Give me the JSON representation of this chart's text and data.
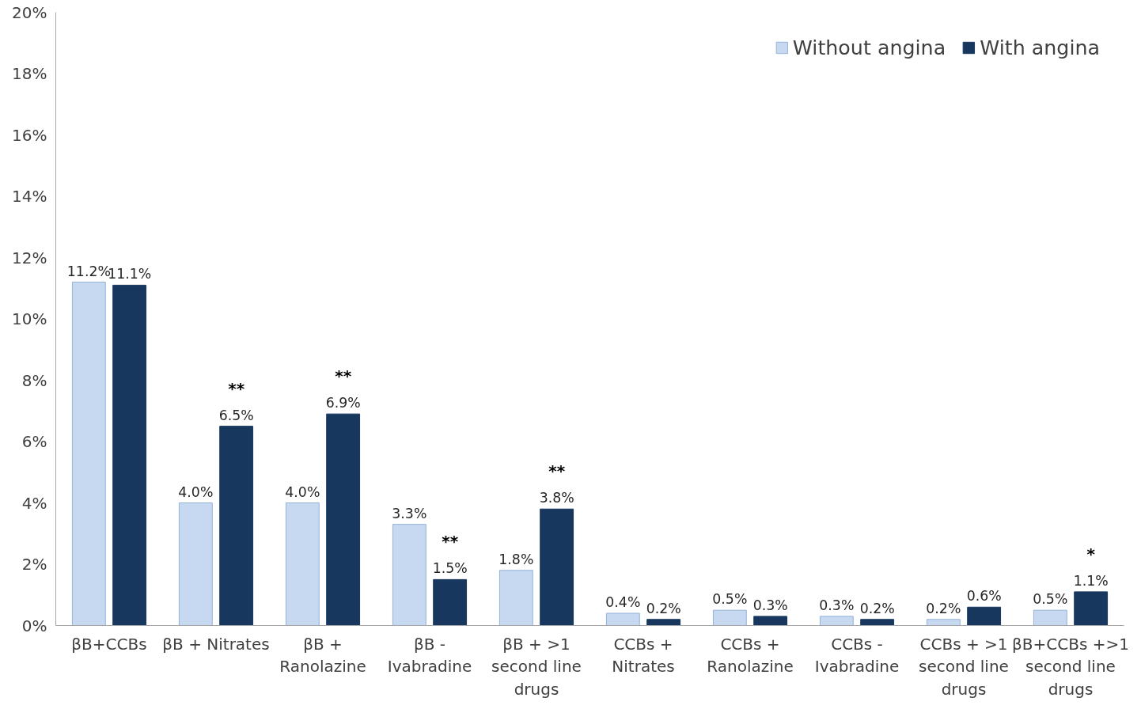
{
  "chart_data": {
    "type": "bar",
    "categories": [
      "βB+CCBs",
      "βB + Nitrates",
      "βB +\nRanolazine",
      "βB -\nIvabradine",
      "βB + >1\nsecond line\ndrugs",
      "CCBs +\nNitrates",
      "CCBs +\nRanolazine",
      "CCBs -\nIvabradine",
      "CCBs + >1\nsecond line\ndrugs",
      "βB+CCBs +>1\nsecond line\ndrugs"
    ],
    "series": [
      {
        "name": "Without angina",
        "color": "#c6d9f1",
        "values": [
          11.2,
          4.0,
          4.0,
          3.3,
          1.8,
          0.4,
          0.5,
          0.3,
          0.2,
          0.5
        ],
        "value_labels": [
          "11.2%",
          "4.0%",
          "4.0%",
          "3.3%",
          "1.8%",
          "0.4%",
          "0.5%",
          "0.3%",
          "0.2%",
          "0.5%"
        ]
      },
      {
        "name": "With angina",
        "color": "#17375e",
        "values": [
          11.1,
          6.5,
          6.9,
          1.5,
          3.8,
          0.2,
          0.3,
          0.2,
          0.6,
          1.1
        ],
        "value_labels": [
          "11.1%",
          "6.5%",
          "6.9%",
          "1.5%",
          "3.8%",
          "0.2%",
          "0.3%",
          "0.2%",
          "0.6%",
          "1.1%"
        ]
      }
    ],
    "ylim": [
      0,
      20
    ],
    "yticks": [
      {
        "value": 0,
        "label": "0%"
      },
      {
        "value": 2,
        "label": "2%"
      },
      {
        "value": 4,
        "label": "4%"
      },
      {
        "value": 6,
        "label": "6%"
      },
      {
        "value": 8,
        "label": "8%"
      },
      {
        "value": 10,
        "label": "10%"
      },
      {
        "value": 12,
        "label": "12%"
      },
      {
        "value": 14,
        "label": "14%"
      },
      {
        "value": 16,
        "label": "16%"
      },
      {
        "value": 18,
        "label": "18%"
      },
      {
        "value": 20,
        "label": "20%"
      }
    ],
    "annotations": [
      "**",
      "**",
      "**",
      "**",
      "*"
    ],
    "grid": false,
    "legend": "top right"
  }
}
